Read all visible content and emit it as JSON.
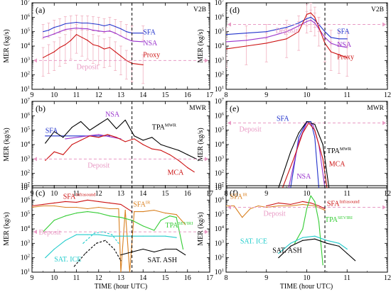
{
  "figure": {
    "xlabel": "TIME (hour UTC)",
    "ylabel": "MER (kg/s)"
  },
  "colors": {
    "SFA": "#2233cc",
    "NSA": "#9933cc",
    "Proxy": "#cc1111",
    "Deposit": "#e89ac4",
    "TPA_MWR": "#000000",
    "MCA": "#cc1111",
    "SFA_infrasound": "#cc1111",
    "SFA_IR": "#d98020",
    "TPA_SEVIRI": "#33cc33",
    "SAT_ICE": "#22cccc",
    "SAT_ASH": "#000000",
    "errorbars": "#f0b0c0",
    "vline": "#000000"
  },
  "chart_data": [
    {
      "panel": "a",
      "label": "(a)",
      "tag": "V2B",
      "type": "line",
      "xlim": [
        9,
        17
      ],
      "ylim_log10": [
        1,
        7
      ],
      "vline": 13.5,
      "series": [
        {
          "name": "SFA",
          "x": [
            9.5,
            9.75,
            10,
            10.25,
            10.5,
            10.75,
            11,
            11.25,
            11.5,
            11.75,
            12,
            12.25,
            12.5,
            12.75,
            13,
            13.25,
            13.5,
            14
          ],
          "log10": [
            5.0,
            5.1,
            5.3,
            5.4,
            5.55,
            5.6,
            5.65,
            5.6,
            5.6,
            5.55,
            5.5,
            5.4,
            5.5,
            5.35,
            5.2,
            5.0,
            4.9,
            4.9
          ]
        },
        {
          "name": "NSA",
          "x": [
            9.5,
            9.75,
            10,
            10.25,
            10.5,
            10.75,
            11,
            11.25,
            11.5,
            11.75,
            12,
            12.25,
            12.5,
            12.75,
            13,
            13.25,
            13.5,
            14
          ],
          "log10": [
            4.6,
            4.7,
            4.85,
            5.0,
            5.15,
            5.2,
            5.25,
            5.2,
            5.2,
            5.1,
            5.05,
            5.0,
            5.05,
            4.9,
            4.7,
            4.5,
            4.35,
            4.3
          ]
        },
        {
          "name": "Proxy",
          "x": [
            9.5,
            9.75,
            10,
            10.25,
            10.5,
            10.75,
            11,
            11.25,
            11.5,
            11.75,
            12,
            12.25,
            12.5,
            12.75,
            13,
            13.25,
            13.5,
            14
          ],
          "log10": [
            3.2,
            3.4,
            3.6,
            3.9,
            4.1,
            4.4,
            4.8,
            4.6,
            4.4,
            4.1,
            4.0,
            3.8,
            3.9,
            3.6,
            3.3,
            3.0,
            2.8,
            2.7
          ]
        },
        {
          "name": "Deposit",
          "y_log10": 3.0,
          "x_range": [
            9,
            17
          ]
        }
      ]
    },
    {
      "panel": "b",
      "label": "(b)",
      "tag": "MWR",
      "type": "line",
      "xlim": [
        9,
        17
      ],
      "ylim_log10": [
        1,
        7
      ],
      "vline": 13.5,
      "series": [
        {
          "name": "SFA",
          "x": [
            9.6,
            12.5
          ],
          "log10": [
            4.6,
            4.6
          ]
        },
        {
          "name": "NSA",
          "x": [
            10.5,
            12.0,
            13.0
          ],
          "log10": [
            4.4,
            4.7,
            4.4
          ]
        },
        {
          "name": "TPA_MWR",
          "x": [
            9.6,
            10,
            10.4,
            10.8,
            11.2,
            11.6,
            12.0,
            12.4,
            12.8,
            13.2,
            13.6,
            14,
            14.4,
            14.8,
            15.2,
            15.6,
            16,
            16.4
          ],
          "log10": [
            4.1,
            4.9,
            4.5,
            5.2,
            5.6,
            5.0,
            5.4,
            5.8,
            5.1,
            5.7,
            4.6,
            4.3,
            4.5,
            4.0,
            3.8,
            3.6,
            3.3,
            3.0
          ]
        },
        {
          "name": "MCA",
          "x": [
            9.6,
            10,
            10.4,
            10.8,
            11.2,
            11.6,
            12.0,
            12.4,
            12.8,
            13.2,
            13.6,
            14,
            14.4,
            14.8,
            15.2,
            15.6,
            16,
            16.3
          ],
          "log10": [
            2.9,
            3.5,
            3.3,
            4.0,
            4.3,
            4.6,
            4.5,
            4.7,
            4.5,
            4.2,
            4.4,
            4.0,
            3.7,
            3.6,
            3.3,
            2.9,
            2.4,
            2.1
          ]
        },
        {
          "name": "Deposit",
          "y_log10": 3.0,
          "x_range": [
            9,
            17
          ]
        }
      ]
    },
    {
      "panel": "c",
      "label": "(c)",
      "tag": "",
      "type": "line",
      "xlim": [
        9,
        17
      ],
      "ylim_log10": [
        1,
        7
      ],
      "vline": 13.5,
      "series": [
        {
          "name": "SFA_infrasound",
          "x": [
            9.0,
            9.5,
            10,
            10.5,
            11,
            11.5,
            12,
            12.5,
            13,
            13.5
          ],
          "log10": [
            5.6,
            5.7,
            5.8,
            5.9,
            5.85,
            6.0,
            5.9,
            5.8,
            5.7,
            5.2
          ]
        },
        {
          "name": "SFA_IR",
          "x": [
            9.0,
            9.5,
            10,
            10.5,
            11,
            11.5,
            12,
            12.5,
            12.9,
            13.0,
            13.2,
            13.4,
            13.6,
            14,
            14.5,
            15,
            15.5,
            15.9
          ],
          "log10": [
            5.5,
            5.6,
            5.6,
            5.5,
            5.5,
            5.4,
            5.5,
            5.4,
            5.4,
            1.0,
            5.3,
            1.0,
            5.2,
            5.2,
            5.3,
            5.1,
            5.0,
            4.3
          ]
        },
        {
          "name": "TPA_SEVIRI",
          "x": [
            9.5,
            10,
            10.5,
            11,
            11.5,
            12,
            12.5,
            13,
            13.5,
            14,
            14.5,
            14.8,
            15.2,
            15.5,
            15.8
          ],
          "log10": [
            3.8,
            4.6,
            4.9,
            5.1,
            5.2,
            5.1,
            4.9,
            4.8,
            4.6,
            4.2,
            3.9,
            4.6,
            4.9,
            4.8,
            2.6
          ]
        },
        {
          "name": "SAT_ICE",
          "x": [
            9.6,
            10,
            10.5,
            11,
            11.5,
            12,
            12.5,
            13,
            13.5,
            14,
            14.5,
            15,
            15.5
          ],
          "log10": [
            2.0,
            2.6,
            3.2,
            3.6,
            3.6,
            3.6,
            3.5,
            3.5,
            3.5,
            3.5,
            3.5,
            3.5,
            3.4
          ]
        },
        {
          "name": "SAT_ICE_dashed",
          "x": [
            11.3,
            11.8,
            12.2,
            12.6,
            12.9
          ],
          "log10": [
            3.0,
            3.7,
            3.8,
            3.6,
            3.0
          ]
        },
        {
          "name": "SAT_ASH_dashed",
          "x": [
            10.9,
            11.4,
            11.9,
            12.3,
            12.7,
            13.0
          ],
          "log10": [
            1.4,
            2.3,
            3.0,
            3.2,
            2.6,
            1.8
          ]
        },
        {
          "name": "SAT_ASH",
          "x": [
            13.0,
            13.5,
            14,
            14.5,
            15,
            15.5,
            15.9
          ],
          "log10": [
            2.2,
            2.4,
            2.6,
            2.4,
            2.6,
            2.6,
            2.2
          ]
        },
        {
          "name": "Deposit",
          "y_log10": 3.8,
          "x_range": [
            9,
            17
          ]
        }
      ]
    },
    {
      "panel": "d",
      "label": "(d)",
      "tag": "V2B",
      "type": "line",
      "xlim": [
        8,
        12
      ],
      "ylim_log10": [
        1,
        7
      ],
      "vline": 10.45,
      "series": [
        {
          "name": "SFA",
          "x": [
            8.0,
            8.5,
            9.0,
            9.5,
            9.8,
            10.0,
            10.1,
            10.2,
            10.3,
            10.45,
            10.6,
            10.8,
            11.0
          ],
          "log10": [
            4.8,
            4.9,
            5.0,
            5.3,
            5.6,
            5.9,
            6.0,
            5.8,
            5.5,
            5.0,
            4.6,
            4.5,
            4.5
          ]
        },
        {
          "name": "NSA",
          "x": [
            8.0,
            8.5,
            9.0,
            9.5,
            9.8,
            10.0,
            10.1,
            10.2,
            10.3,
            10.45,
            10.6,
            10.8,
            11.0
          ],
          "log10": [
            4.3,
            4.4,
            4.6,
            5.0,
            5.4,
            5.7,
            5.8,
            5.6,
            5.2,
            4.6,
            4.2,
            4.0,
            3.9
          ]
        },
        {
          "name": "Proxy",
          "x": [
            8.0,
            8.5,
            9.0,
            9.5,
            9.8,
            10.0,
            10.1,
            10.2,
            10.3,
            10.45,
            10.6,
            10.8,
            11.0
          ],
          "log10": [
            3.8,
            4.0,
            4.2,
            4.5,
            5.0,
            6.2,
            6.3,
            6.0,
            5.3,
            4.2,
            3.6,
            3.4,
            3.2
          ]
        },
        {
          "name": "Deposit",
          "y_log10": 5.5,
          "x_range": [
            8,
            12
          ]
        }
      ]
    },
    {
      "panel": "e",
      "label": "(e)",
      "tag": "MWR",
      "type": "line",
      "xlim": [
        8,
        12
      ],
      "ylim_log10": [
        1,
        7
      ],
      "vline": 10.45,
      "series": [
        {
          "name": "SFA",
          "x": [
            9.6,
            9.8,
            10.0,
            10.1,
            10.2,
            10.3
          ],
          "log10": [
            1.0,
            4.5,
            5.6,
            5.6,
            4.5,
            1.0
          ]
        },
        {
          "name": "NSA",
          "x": [
            9.55,
            9.8,
            10.0,
            10.15,
            10.3,
            10.45
          ],
          "log10": [
            1.0,
            4.2,
            5.5,
            5.4,
            4.0,
            1.0
          ]
        },
        {
          "name": "TPA_MWR",
          "x": [
            9.3,
            9.6,
            9.8,
            10.0,
            10.2,
            10.4,
            10.55
          ],
          "log10": [
            1.0,
            3.5,
            4.8,
            5.6,
            5.4,
            4.0,
            1.0
          ]
        },
        {
          "name": "MCA",
          "x": [
            9.4,
            9.7,
            9.9,
            10.05,
            10.2,
            10.4,
            10.5
          ],
          "log10": [
            1.0,
            3.2,
            4.8,
            5.5,
            5.0,
            3.0,
            1.0
          ]
        },
        {
          "name": "Deposit",
          "y_log10": 5.5,
          "x_range": [
            8,
            12
          ]
        }
      ]
    },
    {
      "panel": "f",
      "label": "(f)",
      "tag": "",
      "type": "line",
      "xlim": [
        8,
        12
      ],
      "ylim_log10": [
        1,
        7
      ],
      "vline": 10.45,
      "series": [
        {
          "name": "SFA_infrasound",
          "x": [
            9.0,
            9.3,
            9.6,
            9.9,
            10.1,
            10.3,
            10.45
          ],
          "log10": [
            5.6,
            5.8,
            5.7,
            5.9,
            5.8,
            5.6,
            5.4
          ]
        },
        {
          "name": "SFA_IR",
          "x": [
            8.0,
            8.2,
            8.4,
            8.6,
            8.8,
            9.0,
            9.3,
            9.6,
            9.9,
            10.2,
            10.45
          ],
          "log10": [
            5.6,
            5.6,
            4.8,
            5.4,
            5.6,
            5.5,
            5.6,
            5.6,
            5.7,
            5.6,
            5.3
          ]
        },
        {
          "name": "TPA_SEVIRI",
          "x": [
            9.7,
            9.9,
            10.0,
            10.1,
            10.2,
            10.3,
            10.4
          ],
          "log10": [
            3.0,
            4.0,
            5.4,
            6.3,
            5.9,
            4.5,
            1.5
          ]
        },
        {
          "name": "SAT_ICE",
          "x": [
            9.3,
            9.6,
            9.9,
            10.2,
            10.5,
            10.8,
            11.0
          ],
          "log10": [
            2.3,
            3.0,
            3.4,
            3.5,
            3.2,
            3.0,
            2.6
          ]
        },
        {
          "name": "SAT_ASH",
          "x": [
            9.3,
            9.6,
            9.9,
            10.2,
            10.5,
            10.8,
            11.0,
            11.2
          ],
          "log10": [
            2.0,
            2.8,
            3.2,
            3.3,
            3.0,
            2.8,
            2.3,
            1.8
          ]
        },
        {
          "name": "Deposit",
          "y_log10": 5.5,
          "x_range": [
            8,
            12
          ]
        }
      ]
    }
  ],
  "labels": {
    "SFA": "SFA",
    "NSA": "NSA",
    "Proxy": "Proxy",
    "Deposit": "Deposit",
    "TPA": "TPA",
    "MWR_sup": "MWR",
    "MCA": "MCA",
    "SFA_infrasound_sup": "Infrasound",
    "SFA_IR_sup": "IR",
    "SEVIRI_sup": "SEVIRI",
    "SAT_ICE": "SAT. ICE",
    "SAT_ASH": "SAT. ASH"
  }
}
